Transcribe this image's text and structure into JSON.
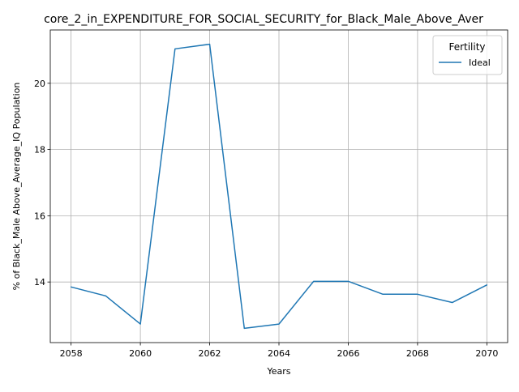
{
  "chart_data": {
    "type": "line",
    "title": "core_2_in_EXPENDITURE_FOR_SOCIAL_SECURITY_for_Black_Male_Above_Aver",
    "xlabel": "Years",
    "ylabel": "% of Black_Male Above_Average_IQ Population",
    "x": [
      2058,
      2059,
      2060,
      2061,
      2062,
      2063,
      2064,
      2065,
      2066,
      2067,
      2068,
      2069,
      2070
    ],
    "series": [
      {
        "name": "Ideal",
        "color": "#1f77b4",
        "values": [
          13.85,
          13.58,
          12.73,
          21.04,
          21.18,
          12.6,
          12.73,
          14.02,
          14.02,
          13.63,
          13.63,
          13.38,
          13.91
        ]
      }
    ],
    "xlim": [
      2057.4,
      2070.6
    ],
    "ylim": [
      12.17,
      21.61
    ],
    "xticks": [
      "2058",
      "2060",
      "2062",
      "2064",
      "2066",
      "2068",
      "2070"
    ],
    "yticks": [
      "14",
      "16",
      "18",
      "20"
    ],
    "grid": true,
    "legend": {
      "title": "Fertility",
      "placement": "top-right"
    }
  }
}
